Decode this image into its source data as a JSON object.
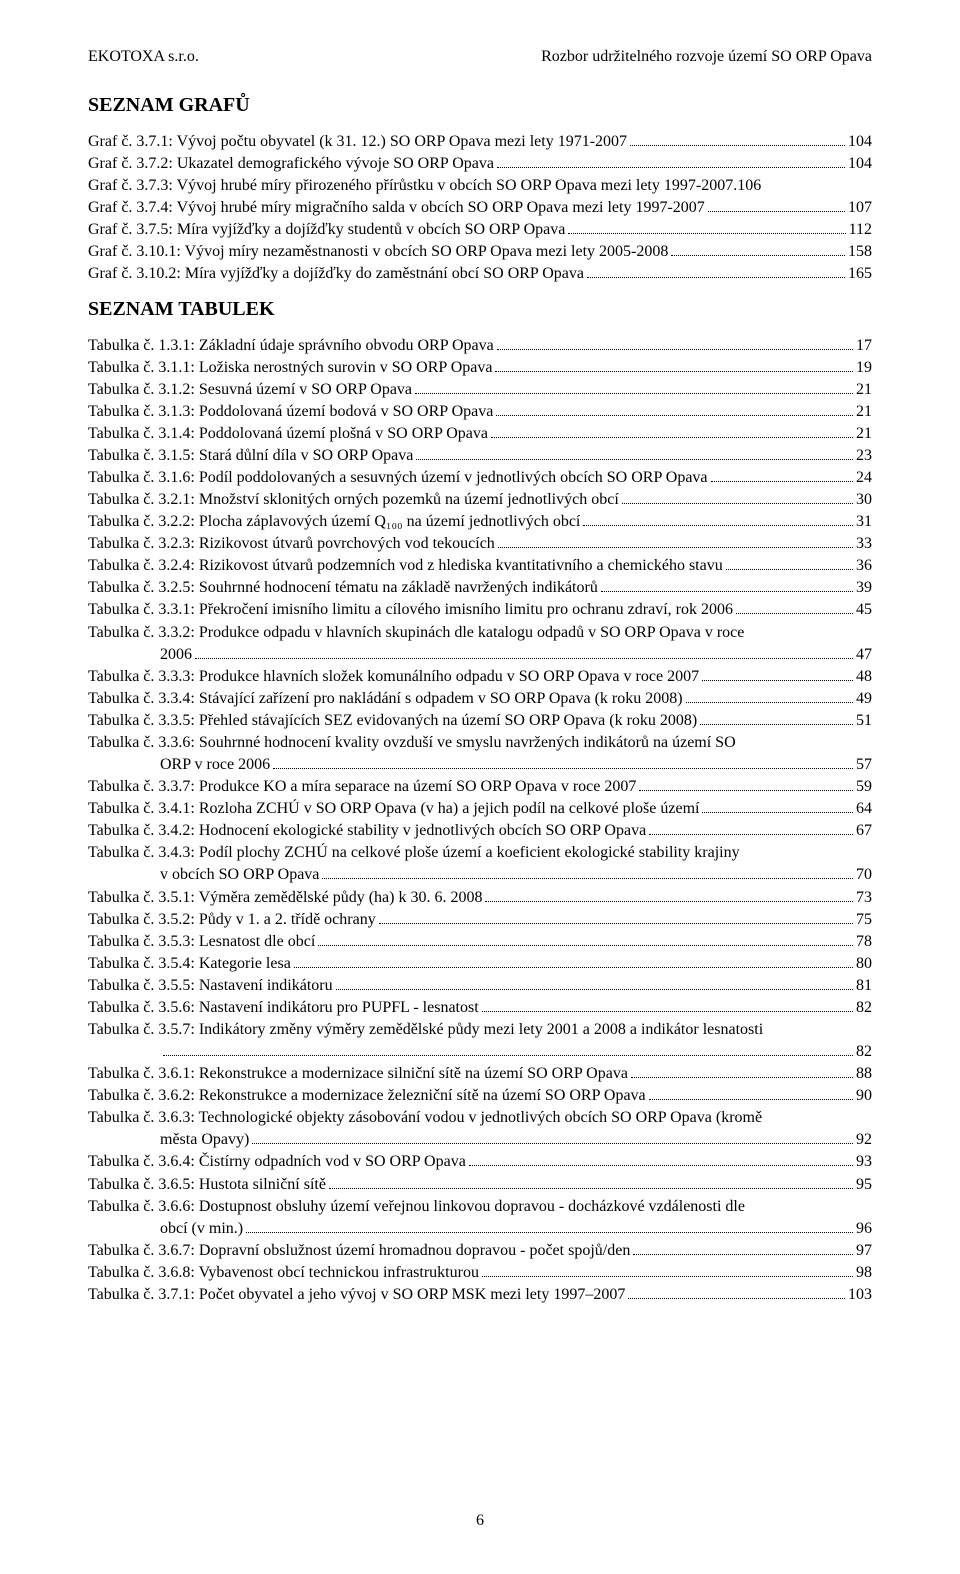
{
  "header": {
    "left": "EKOTOXA s.r.o.",
    "right": "Rozbor udržitelného rozvoje území SO ORP Opava"
  },
  "headings": {
    "graphs": "SEZNAM GRAFŮ",
    "tables": "SEZNAM TABULEK"
  },
  "graphs": [
    {
      "label": "Graf č. 3.7.1: Vývoj počtu obyvatel (k 31. 12.) SO ORP Opava mezi lety 1971-2007",
      "page": "104"
    },
    {
      "label": "Graf č. 3.7.2: Ukazatel demografického vývoje SO ORP Opava",
      "page": "104"
    },
    {
      "label": "Graf č. 3.7.3: Vývoj hrubé míry přirozeného přírůstku v obcích SO ORP Opava mezi lety 1997-2007.106",
      "page": null
    },
    {
      "label": "Graf č. 3.7.4: Vývoj hrubé míry migračního salda v obcích SO ORP Opava mezi lety 1997-2007",
      "page": "107"
    },
    {
      "label": "Graf č. 3.7.5: Míra vyjížďky a dojížďky studentů v obcích SO ORP Opava",
      "page": "112"
    },
    {
      "label": "Graf č. 3.10.1: Vývoj míry nezaměstnanosti v obcích SO ORP Opava mezi lety 2005-2008",
      "page": "158"
    },
    {
      "label": "Graf č. 3.10.2: Míra vyjížďky a dojížďky do zaměstnání obcí SO ORP Opava",
      "page": "165"
    }
  ],
  "tables": [
    {
      "label": "Tabulka č. 1.3.1: Základní údaje správního obvodu ORP Opava",
      "page": "17"
    },
    {
      "label": "Tabulka č. 3.1.1: Ložiska nerostných surovin v SO ORP Opava",
      "page": "19"
    },
    {
      "label": "Tabulka č. 3.1.2: Sesuvná území v SO ORP Opava",
      "page": "21"
    },
    {
      "label": "Tabulka č. 3.1.3: Poddolovaná území bodová v SO ORP Opava",
      "page": "21"
    },
    {
      "label": "Tabulka č. 3.1.4: Poddolovaná území plošná v SO ORP Opava",
      "page": "21"
    },
    {
      "label": "Tabulka č. 3.1.5: Stará důlní díla v SO ORP Opava",
      "page": "23"
    },
    {
      "label": "Tabulka č. 3.1.6: Podíl poddolovaných a sesuvných území v jednotlivých obcích SO ORP Opava",
      "page": "24"
    },
    {
      "label": "Tabulka č. 3.2.1: Množství sklonitých orných pozemků na území jednotlivých obcí",
      "page": "30"
    },
    {
      "label": "Tabulka č. 3.2.2: Plocha záplavových území Q₁₀₀ na území jednotlivých obcí",
      "page": "31"
    },
    {
      "label": "Tabulka č. 3.2.3: Rizikovost útvarů povrchových vod tekoucích",
      "page": "33"
    },
    {
      "label": "Tabulka č. 3.2.4: Rizikovost útvarů podzemních vod z hlediska kvantitativního a chemického stavu",
      "page": "36"
    },
    {
      "label": "Tabulka č. 3.2.5: Souhrnné hodnocení tématu na základě navržených indikátorů",
      "page": "39"
    },
    {
      "label": "Tabulka č. 3.3.1: Překročení imisního limitu a cílového imisního limitu pro ochranu zdraví, rok 2006",
      "page": "45"
    },
    {
      "label": "Tabulka č. 3.3.2: Produkce odpadu v hlavních skupinách dle katalogu odpadů v SO ORP Opava v roce",
      "cont": "2006",
      "page": "47",
      "wrap": true
    },
    {
      "label": "Tabulka č. 3.3.3: Produkce hlavních složek komunálního odpadu v SO ORP Opava v roce 2007",
      "page": "48"
    },
    {
      "label": "Tabulka č. 3.3.4: Stávající zařízení pro nakládání s odpadem v SO ORP Opava (k roku 2008)",
      "page": "49"
    },
    {
      "label": "Tabulka č. 3.3.5: Přehled stávajících SEZ evidovaných na území SO ORP Opava (k roku 2008)",
      "page": "51"
    },
    {
      "label": "Tabulka č. 3.3.6: Souhrnné hodnocení kvality ovzduší ve smyslu navržených indikátorů na území SO",
      "cont": "ORP v roce 2006",
      "page": "57",
      "wrap": true
    },
    {
      "label": "Tabulka č. 3.3.7: Produkce KO a míra separace na území SO ORP Opava v roce 2007",
      "page": "59"
    },
    {
      "label": "Tabulka č. 3.4.1: Rozloha ZCHÚ v SO ORP Opava (v ha) a jejich podíl na celkové ploše území",
      "page": "64"
    },
    {
      "label": "Tabulka č. 3.4.2: Hodnocení ekologické stability v jednotlivých obcích SO ORP Opava",
      "page": "67"
    },
    {
      "label": "Tabulka č. 3.4.3: Podíl plochy ZCHÚ na celkové ploše území a koeficient ekologické stability krajiny",
      "cont": "v obcích SO ORP Opava",
      "page": "70",
      "wrap": true
    },
    {
      "label": "Tabulka č. 3.5.1: Výměra zemědělské půdy (ha) k 30. 6. 2008",
      "page": "73"
    },
    {
      "label": "Tabulka č. 3.5.2: Půdy v 1. a 2. třídě ochrany",
      "page": "75"
    },
    {
      "label": "Tabulka č. 3.5.3: Lesnatost dle obcí",
      "page": "78"
    },
    {
      "label": "Tabulka č. 3.5.4: Kategorie lesa",
      "page": "80"
    },
    {
      "label": "Tabulka č. 3.5.5: Nastavení indikátoru",
      "page": "81"
    },
    {
      "label": "Tabulka č. 3.5.6: Nastavení indikátoru pro PUPFL - lesnatost",
      "page": "82"
    },
    {
      "label": "Tabulka č. 3.5.7: Indikátory změny výměry zemědělské půdy mezi lety 2001 a 2008 a indikátor lesnatosti",
      "cont": "",
      "page": "82",
      "wrap": true
    },
    {
      "label": "Tabulka č. 3.6.1: Rekonstrukce a modernizace silniční sítě na území SO ORP Opava",
      "page": "88"
    },
    {
      "label": "Tabulka č. 3.6.2: Rekonstrukce a modernizace železniční sítě na území SO ORP Opava",
      "page": "90"
    },
    {
      "label": "Tabulka č. 3.6.3: Technologické objekty zásobování vodou v jednotlivých obcích SO ORP Opava (kromě",
      "cont": "města Opavy)",
      "page": "92",
      "wrap": true
    },
    {
      "label": "Tabulka č. 3.6.4: Čistírny odpadních vod v SO ORP Opava",
      "page": "93"
    },
    {
      "label": "Tabulka č. 3.6.5: Hustota silniční sítě",
      "page": "95"
    },
    {
      "label": "Tabulka č. 3.6.6: Dostupnost obsluhy území veřejnou linkovou dopravou - docházkové vzdálenosti dle",
      "cont": "obcí (v min.)",
      "page": "96",
      "wrap": true
    },
    {
      "label": "Tabulka č. 3.6.7: Dopravní obslužnost území hromadnou dopravou - počet spojů/den",
      "page": "97"
    },
    {
      "label": "Tabulka č. 3.6.8: Vybavenost obcí technickou infrastrukturou",
      "page": "98"
    },
    {
      "label": "Tabulka č. 3.7.1: Počet obyvatel a jeho vývoj v SO ORP MSK mezi lety 1997–2007",
      "page": "103"
    }
  ],
  "pageNumber": "6"
}
